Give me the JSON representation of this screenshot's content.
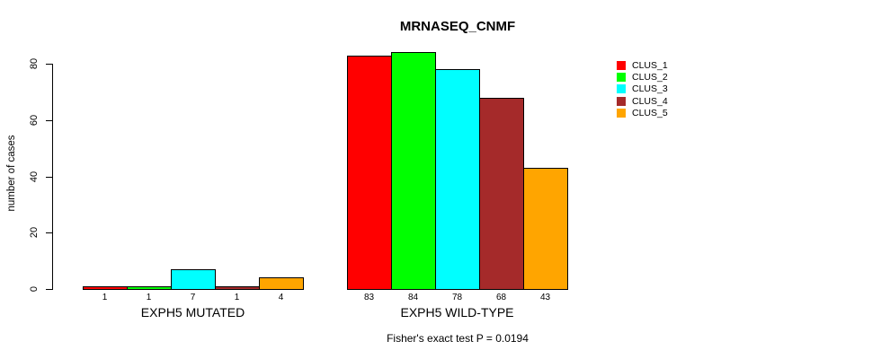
{
  "title": "MRNASEQ_CNMF",
  "ylabel": "number of cases",
  "footnote": "Fisher's exact test P = 0.0194",
  "legend": {
    "items": [
      {
        "label": "CLUS_1",
        "color": "#FF0000"
      },
      {
        "label": "CLUS_2",
        "color": "#00FF00"
      },
      {
        "label": "CLUS_3",
        "color": "#00FFFF"
      },
      {
        "label": "CLUS_4",
        "color": "#A52A2A"
      },
      {
        "label": "CLUS_5",
        "color": "#FFA500"
      }
    ]
  },
  "chart_data": {
    "type": "bar",
    "title": "MRNASEQ_CNMF",
    "xlabel": "",
    "ylabel": "number of cases",
    "categories": [
      "EXPH5 MUTATED",
      "EXPH5 WILD-TYPE"
    ],
    "series": [
      {
        "name": "CLUS_1",
        "color": "#FF0000",
        "values": [
          1,
          83
        ]
      },
      {
        "name": "CLUS_2",
        "color": "#00FF00",
        "values": [
          1,
          84
        ]
      },
      {
        "name": "CLUS_3",
        "color": "#00FFFF",
        "values": [
          7,
          78
        ]
      },
      {
        "name": "CLUS_4",
        "color": "#A52A2A",
        "values": [
          1,
          68
        ]
      },
      {
        "name": "CLUS_5",
        "color": "#FFA500",
        "values": [
          4,
          43
        ]
      }
    ],
    "yticks": [
      0,
      20,
      40,
      60,
      80
    ],
    "ylim": [
      0,
      84
    ],
    "grid": false,
    "legend_position": "right",
    "bar_value_labels": true,
    "annotation": "Fisher's exact test P = 0.0194"
  }
}
